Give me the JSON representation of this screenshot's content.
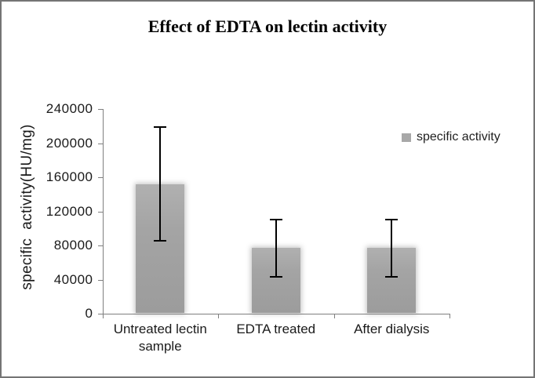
{
  "chart_data": {
    "type": "bar",
    "title": "Effect of EDTA on lectin activity",
    "ylabel": "specific  activity(HU/mg)",
    "xlabel": "",
    "categories": [
      "Untreated lectin sample",
      "EDTA treated",
      "After dialysis"
    ],
    "series": [
      {
        "name": "specific activity",
        "values": [
          152000,
          77000,
          77000
        ],
        "error_low": [
          85500,
          43500,
          43500
        ],
        "error_high": [
          219000,
          110000,
          110000
        ]
      }
    ],
    "ylim": [
      0,
      240000
    ],
    "yticks": [
      0,
      40000,
      80000,
      120000,
      160000,
      200000,
      240000
    ],
    "legend": {
      "label": "specific activity",
      "position": "right"
    },
    "grid": false,
    "colors": {
      "bar": "#a6a6a6",
      "axis": "#7f7f7f",
      "error_bar": "#000000",
      "frame_border": "#757575",
      "text": "#1a1a1a",
      "background": "#ffffff"
    }
  }
}
